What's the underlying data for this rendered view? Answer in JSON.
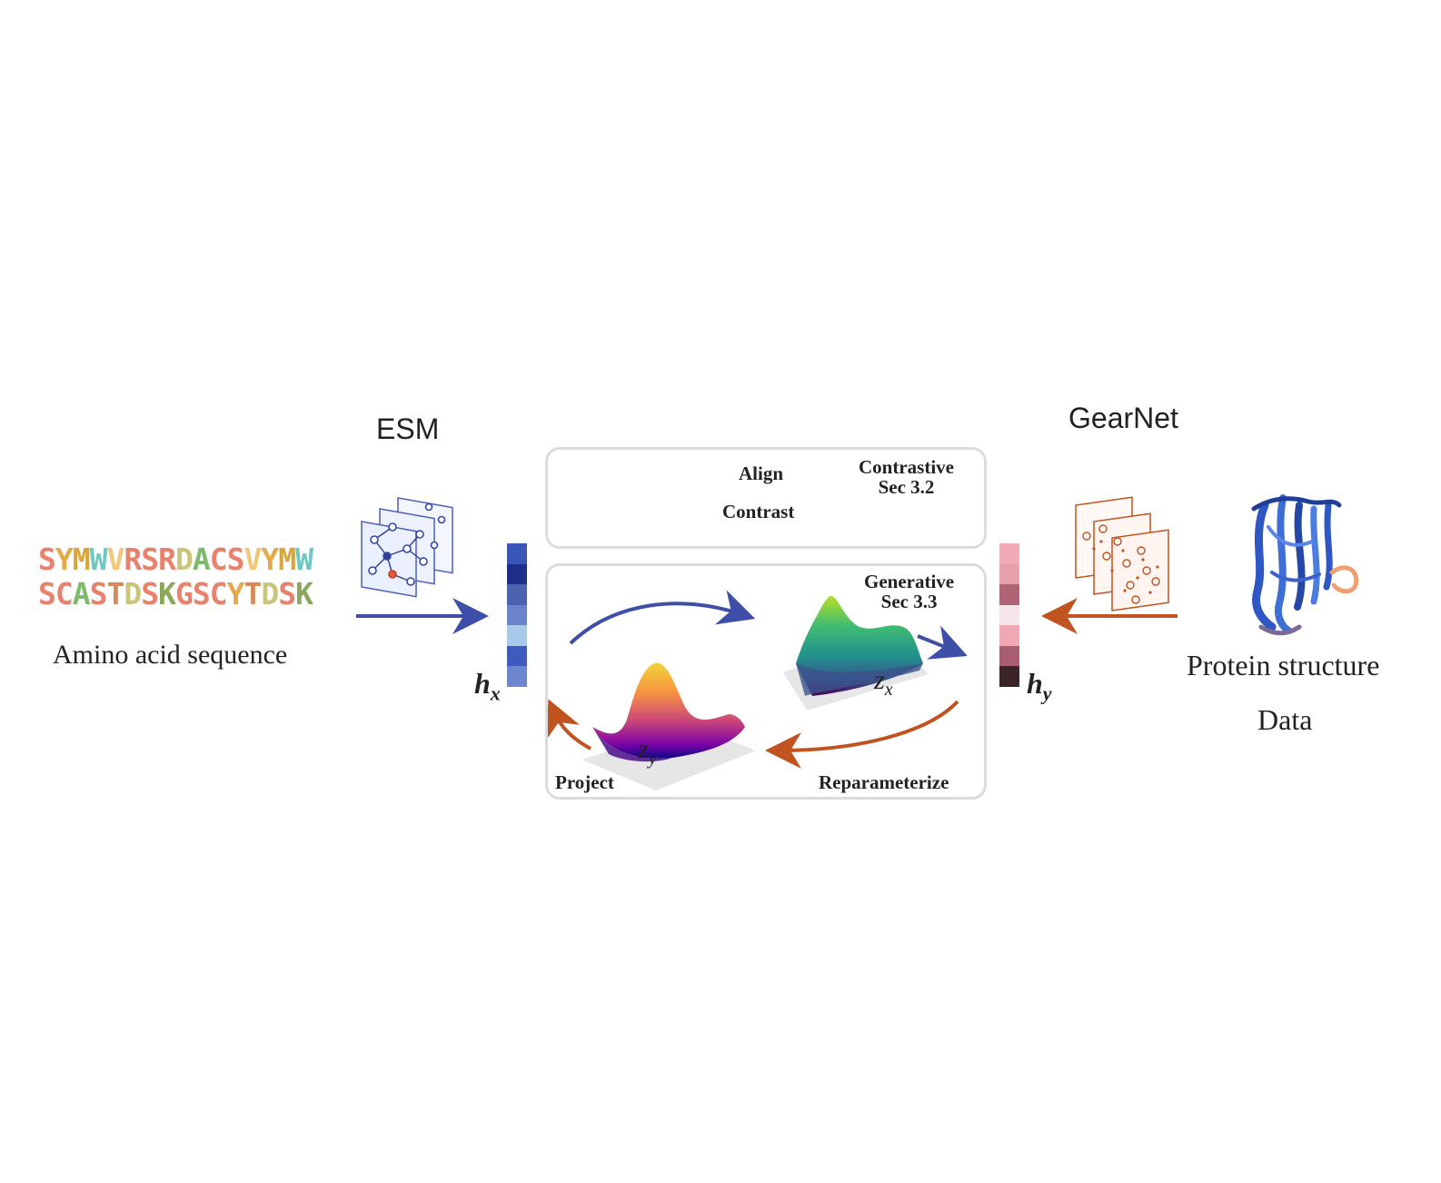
{
  "left": {
    "encoder_label": "ESM",
    "sequence_lines": [
      {
        "letters": [
          "S",
          "Y",
          "M",
          "W",
          "V",
          "R",
          "S",
          "R",
          "D",
          "A",
          "C",
          "S",
          "V",
          "Y",
          "M",
          "W"
        ],
        "colors": [
          "#e8826c",
          "#e6a94a",
          "#d9a63c",
          "#6fc7c2",
          "#f2c77a",
          "#e8826c",
          "#e8826c",
          "#e8826c",
          "#c9c57a",
          "#7fba6b",
          "#e8826c",
          "#e8826c",
          "#f2c77a",
          "#e6a94a",
          "#d9a63c",
          "#6fc7c2"
        ]
      },
      {
        "letters": [
          "S",
          "C",
          "A",
          "S",
          "T",
          "D",
          "S",
          "K",
          "G",
          "S",
          "C",
          "Y",
          "T",
          "D",
          "S",
          "K"
        ],
        "colors": [
          "#e8826c",
          "#e8826c",
          "#7fba6b",
          "#e8826c",
          "#d98a5a",
          "#c9c57a",
          "#e8826c",
          "#8aa85a",
          "#e8826c",
          "#e8826c",
          "#e8826c",
          "#e6a94a",
          "#d98a5a",
          "#c9c57a",
          "#e8826c",
          "#8aa85a"
        ]
      }
    ],
    "caption": "Amino acid sequence",
    "vector_symbol": "h",
    "vector_subscript": "x",
    "vector_colors": [
      "#3a55b8",
      "#1e2f8a",
      "#4a62b0",
      "#6b82cc",
      "#a9c9ea",
      "#3f5bc0",
      "#6e86d0"
    ]
  },
  "right": {
    "encoder_label": "GearNet",
    "caption_line1": "Protein structure",
    "caption_line2": "Data",
    "vector_symbol": "h",
    "vector_subscript": "y",
    "vector_colors": [
      "#f2aab6",
      "#e7a1ad",
      "#b06374",
      "#f6e6ea",
      "#efa8b4",
      "#a85e70",
      "#3a2428"
    ]
  },
  "contrastive_panel": {
    "title_line1": "Contrastive",
    "title_line2": "Sec 3.2",
    "align_label": "Align",
    "contrast_label": "Contrast"
  },
  "generative_panel": {
    "title_line1": "Generative",
    "title_line2": "Sec 3.3",
    "zx_symbol": "z",
    "zx_subscript": "x",
    "zy_symbol": "z",
    "zy_subscript": "y",
    "project_label": "Project",
    "reparameterize_label": "Reparameterize"
  },
  "colors": {
    "blue_arrow": "#3f4fa8",
    "orange_arrow": "#c0531f",
    "black_arrow": "#111111",
    "panel_border": "#dcdcdc"
  }
}
